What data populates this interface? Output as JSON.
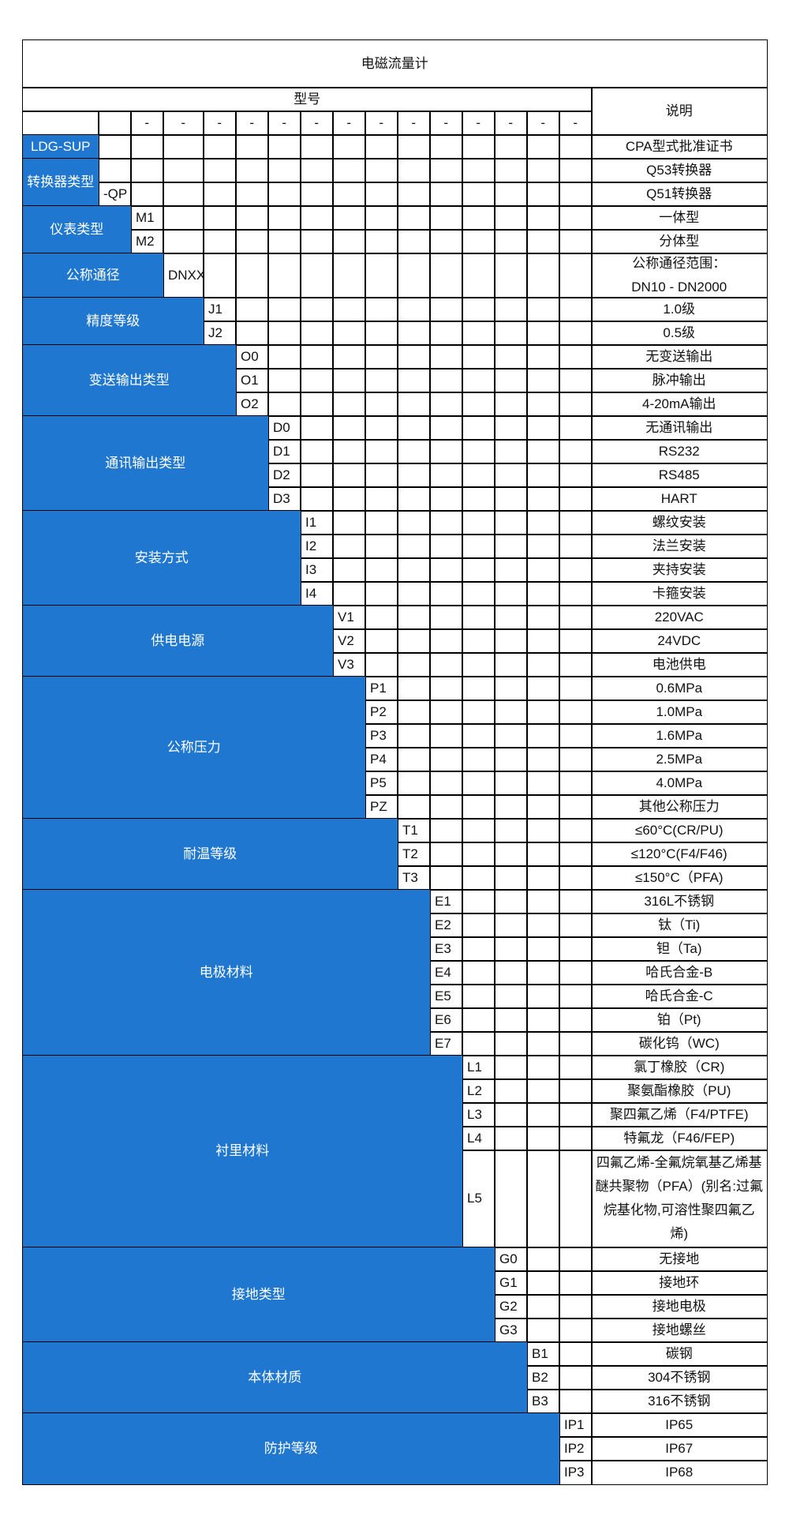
{
  "title": "电磁流量计",
  "header": {
    "model_label": "型号",
    "description_label": "说明",
    "separator": "-"
  },
  "colors": {
    "label_bg": "#1f77cf",
    "label_text": "#ffffff",
    "border": "#000000"
  },
  "groups": [
    {
      "label": "LDG-SUP",
      "codes": [
        ""
      ],
      "descriptions": [
        "CPA型式批准证书"
      ]
    },
    {
      "label": "转换器类型",
      "codes": [
        "",
        "-QP"
      ],
      "descriptions": [
        "Q53转换器",
        "Q51转换器"
      ]
    },
    {
      "label": "仪表类型",
      "codes": [
        "M1",
        "M2"
      ],
      "descriptions": [
        "一体型",
        "分体型"
      ]
    },
    {
      "label": "公称通径",
      "codes": [
        "DNXX"
      ],
      "descriptions": [
        "公称通径范围：\nDN10 - DN2000"
      ]
    },
    {
      "label": "精度等级",
      "codes": [
        "J1",
        "J2"
      ],
      "descriptions": [
        "1.0级",
        "0.5级"
      ]
    },
    {
      "label": "变送输出类型",
      "codes": [
        "O0",
        "O1",
        "O2"
      ],
      "descriptions": [
        "无变送输出",
        "脉冲输出",
        "4-20mA输出"
      ]
    },
    {
      "label": "通讯输出类型",
      "codes": [
        "D0",
        "D1",
        "D2",
        "D3"
      ],
      "descriptions": [
        "无通讯输出",
        "RS232",
        "RS485",
        "HART"
      ]
    },
    {
      "label": "安装方式",
      "codes": [
        "I1",
        "I2",
        "I3",
        "I4"
      ],
      "descriptions": [
        "螺纹安装",
        "法兰安装",
        "夹持安装",
        "卡箍安装"
      ]
    },
    {
      "label": "供电电源",
      "codes": [
        "V1",
        "V2",
        "V3"
      ],
      "descriptions": [
        "220VAC",
        "24VDC",
        "电池供电"
      ]
    },
    {
      "label": "公称压力",
      "codes": [
        "P1",
        "P2",
        "P3",
        "P4",
        "P5",
        "PZ"
      ],
      "descriptions": [
        "0.6MPa",
        "1.0MPa",
        "1.6MPa",
        "2.5MPa",
        "4.0MPa",
        "其他公称压力"
      ]
    },
    {
      "label": "耐温等级",
      "codes": [
        "T1",
        "T2",
        "T3"
      ],
      "descriptions": [
        "≤60°C(CR/PU)",
        "≤120°C(F4/F46)",
        "≤150°C（PFA)"
      ]
    },
    {
      "label": "电极材料",
      "codes": [
        "E1",
        "E2",
        "E3",
        "E4",
        "E5",
        "E6",
        "E7"
      ],
      "descriptions": [
        "316L不锈钢",
        "钛（Ti)",
        "钽（Ta)",
        "哈氏合金-B",
        "哈氏合金-C",
        "铂（Pt)",
        "碳化钨（WC)"
      ]
    },
    {
      "label": "衬里材料",
      "codes": [
        "L1",
        "L2",
        "L3",
        "L4",
        "L5"
      ],
      "descriptions": [
        "氯丁橡胶（CR)",
        "聚氨酯橡胶（PU)",
        "聚四氟乙烯（F4/PTFE)",
        "特氟龙（F46/FEP)",
        "四氟乙烯-全氟烷氧基乙烯基醚共聚物（PFA）(别名:过氟烷基化物,可溶性聚四氟乙烯)"
      ]
    },
    {
      "label": "接地类型",
      "codes": [
        "G0",
        "G1",
        "G2",
        "G3"
      ],
      "descriptions": [
        "无接地",
        "接地环",
        "接地电极",
        "接地螺丝"
      ]
    },
    {
      "label": "本体材质",
      "codes": [
        "B1",
        "B2",
        "B3"
      ],
      "descriptions": [
        "碳钢",
        "304不锈钢",
        "316不锈钢"
      ]
    },
    {
      "label": "防护等级",
      "codes": [
        "IP1",
        "IP2",
        "IP3"
      ],
      "descriptions": [
        "IP65",
        "IP67",
        "IP68"
      ]
    }
  ]
}
